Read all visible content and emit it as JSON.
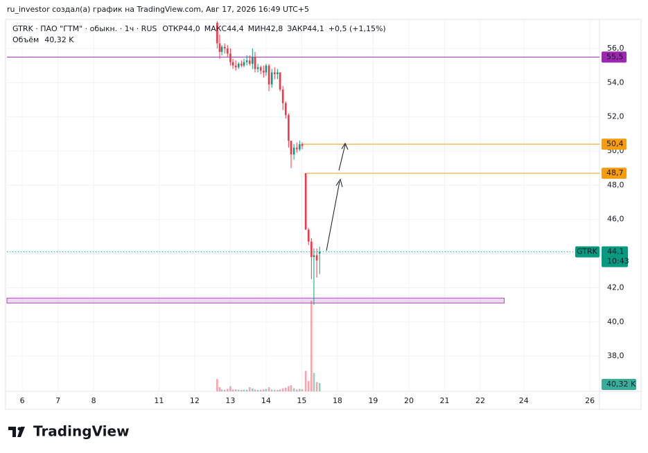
{
  "header": {
    "credit": "ru_investor создал(а) график на TradingView.com, Авг 17, 2026 16:49 UTC+5"
  },
  "footer": {
    "brand": "TradingView"
  },
  "chart_data": {
    "type": "candlestick",
    "symbol_line": "GTRK · ПАО \"ГТМ\" · обыкн. · 1ч · RUS",
    "ohlc_legend": [
      {
        "name": "ОТКР",
        "value": 44.0,
        "label": "44,0"
      },
      {
        "name": "МАКС",
        "value": 44.4,
        "label": "44,4"
      },
      {
        "name": "МИН",
        "value": 42.8,
        "label": "42,8"
      },
      {
        "name": "ЗАКР",
        "value": 44.1,
        "label": "44,1"
      }
    ],
    "change": {
      "value": 0.5,
      "percent": 1.15,
      "label": "+0,5 (+1,15%)"
    },
    "volume_legend": {
      "name": "Объём",
      "value": 40320,
      "label": "40,32 K"
    },
    "up_color": "#089981",
    "down_color": "#f23645",
    "xlim": [
      -0.43,
      16.17
    ],
    "ylim": [
      35.94,
      57.62
    ],
    "volume_lim": [
      0,
      1800000
    ],
    "xticks": [
      {
        "value": 0,
        "label": "6"
      },
      {
        "value": 1,
        "label": "7"
      },
      {
        "value": 2,
        "label": "8"
      },
      {
        "value": 3.83,
        "label": "11"
      },
      {
        "value": 4.83,
        "label": "12"
      },
      {
        "value": 5.83,
        "label": "13"
      },
      {
        "value": 6.83,
        "label": "14"
      },
      {
        "value": 7.83,
        "label": "15"
      },
      {
        "value": 8.83,
        "label": "18"
      },
      {
        "value": 9.83,
        "label": "19"
      },
      {
        "value": 10.83,
        "label": "20"
      },
      {
        "value": 11.83,
        "label": "21"
      },
      {
        "value": 12.83,
        "label": "22"
      },
      {
        "value": 14.05,
        "label": "24"
      },
      {
        "value": 15.9,
        "label": "26"
      }
    ],
    "yticks": [
      {
        "value": 38,
        "label": "38,0"
      },
      {
        "value": 40,
        "label": "40,0"
      },
      {
        "value": 42,
        "label": "42,0"
      },
      {
        "value": 44,
        "label": "44,0"
      },
      {
        "value": 46,
        "label": "46,0"
      },
      {
        "value": 48,
        "label": "48,0"
      },
      {
        "value": 50,
        "label": "50,0"
      },
      {
        "value": 52,
        "label": "52,0"
      },
      {
        "value": 54,
        "label": "54,0"
      },
      {
        "value": 56,
        "label": "56,0"
      }
    ],
    "x": [
      5.46,
      5.53,
      5.59,
      5.67,
      5.75,
      5.83,
      5.9,
      5.98,
      6.06,
      6.14,
      6.21,
      6.29,
      6.37,
      6.45,
      6.52,
      6.6,
      6.68,
      6.76,
      6.83,
      6.91,
      6.99,
      7.07,
      7.15,
      7.22,
      7.3,
      7.38,
      7.46,
      7.53,
      7.61,
      7.69,
      7.77,
      7.84,
      7.94,
      8.02,
      8.1,
      8.17,
      8.25,
      8.33
    ],
    "open": [
      57.5,
      56.3,
      55.8,
      56.1,
      56.0,
      55.7,
      55.2,
      55.0,
      54.9,
      55.1,
      55.0,
      55.2,
      55.3,
      55.1,
      55.5,
      54.8,
      54.9,
      54.7,
      54.6,
      55.0,
      53.9,
      54.6,
      54.5,
      54.6,
      53.6,
      52.8,
      52.1,
      50.6,
      49.8,
      50.2,
      50.1,
      50.4,
      48.7,
      45.4,
      44.7,
      43.8,
      43.9,
      44.0
    ],
    "high": [
      57.6,
      56.8,
      56.2,
      56.3,
      56.2,
      56.0,
      55.4,
      55.3,
      55.2,
      55.3,
      55.4,
      55.6,
      55.6,
      56.0,
      55.8,
      55.1,
      55.0,
      55.0,
      55.1,
      55.1,
      54.8,
      54.9,
      54.8,
      54.6,
      53.8,
      52.9,
      52.2,
      50.6,
      50.4,
      50.5,
      50.6,
      50.5,
      48.7,
      45.5,
      44.9,
      44.3,
      44.3,
      44.4
    ],
    "low": [
      56.0,
      55.4,
      55.6,
      55.7,
      55.5,
      55.0,
      54.8,
      54.7,
      54.8,
      54.9,
      54.9,
      55.0,
      55.0,
      54.8,
      54.6,
      54.6,
      54.5,
      54.3,
      54.4,
      53.5,
      53.7,
      54.2,
      54.2,
      53.5,
      52.4,
      51.9,
      50.2,
      49.0,
      49.5,
      49.9,
      50.0,
      50.1,
      45.4,
      44.5,
      42.5,
      41.0,
      42.6,
      42.8
    ],
    "close": [
      56.3,
      55.8,
      56.1,
      56.0,
      55.7,
      55.2,
      55.0,
      54.9,
      55.1,
      55.0,
      55.2,
      55.3,
      55.1,
      55.5,
      54.8,
      54.9,
      54.7,
      54.6,
      55.0,
      53.9,
      54.6,
      54.5,
      54.6,
      53.6,
      52.8,
      52.1,
      50.6,
      49.8,
      50.2,
      50.1,
      50.4,
      50.3,
      45.4,
      44.7,
      43.8,
      43.9,
      43.6,
      44.1
    ],
    "volume": [
      60000,
      20000,
      9000,
      8000,
      12000,
      25000,
      9000,
      10000,
      8000,
      7000,
      9000,
      8000,
      20000,
      15000,
      9000,
      7000,
      8000,
      9000,
      12000,
      20000,
      9000,
      8000,
      7000,
      9000,
      15000,
      18000,
      25000,
      30000,
      15000,
      9000,
      12000,
      10000,
      100000,
      50000,
      440000,
      90000,
      45000,
      40320
    ],
    "levels": [
      {
        "value": 55.5,
        "label": "55,5",
        "color": "#9c27b0"
      },
      {
        "value": 50.4,
        "label": "50,4",
        "color": "#f59d0f",
        "x_start": 7.84
      },
      {
        "value": 48.7,
        "label": "48,7",
        "color": "#f59d0f",
        "x_start": 7.94
      }
    ],
    "last_price": {
      "value": 44.1,
      "label": "44,1",
      "symbol": "GTRK",
      "countdown": "10:43"
    },
    "zone": {
      "from": 41.1,
      "to": 41.4,
      "x_end": 13.5,
      "color": "#e1bee7"
    }
  }
}
